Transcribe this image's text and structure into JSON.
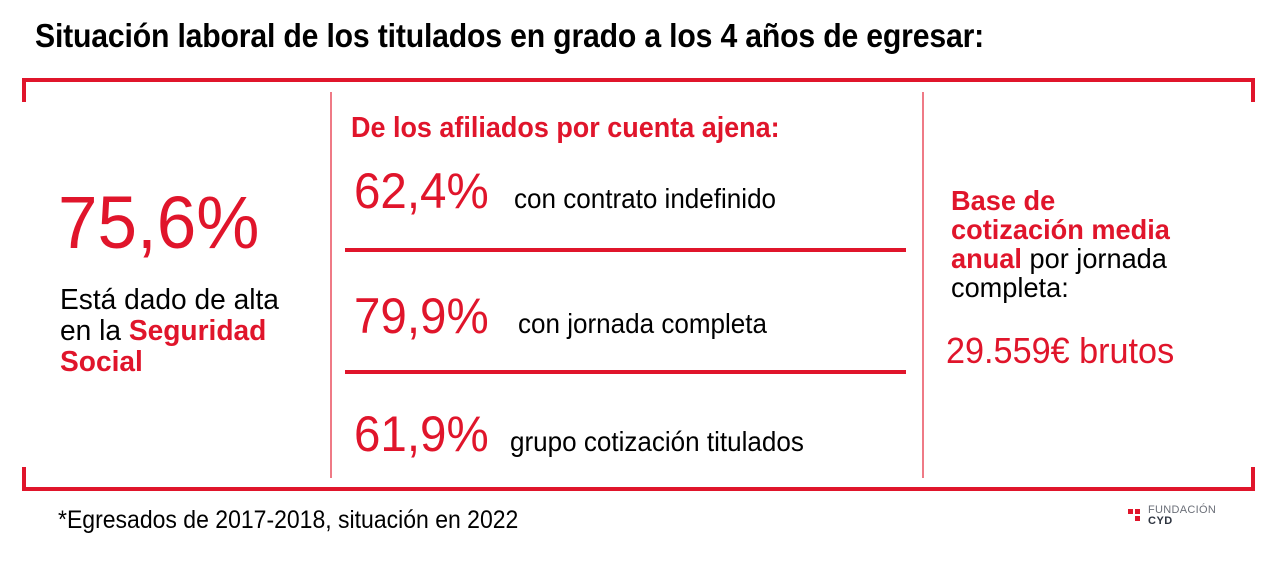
{
  "title": "Situación laboral de los titulados en grado a los 4 años de egresar:",
  "colors": {
    "accent": "#e0152b",
    "text": "#000000"
  },
  "left_panel": {
    "value": "75,6%",
    "desc_line1": "Está dado de alta",
    "desc_line2_prefix": "en la ",
    "desc_highlight_1": "Seguridad",
    "desc_highlight_2": "Social"
  },
  "middle_panel": {
    "heading": "De los afiliados por cuenta ajena:",
    "stats": [
      {
        "value": "62,4%",
        "label": "con contrato indefinido"
      },
      {
        "value": "79,9%",
        "label": "con jornada completa"
      },
      {
        "value": "61,9%",
        "label": "grupo cotización titulados"
      }
    ]
  },
  "right_panel": {
    "line1": "Base de",
    "line2": "cotización media",
    "line3_highlight": "anual",
    "line3_rest": " por jornada",
    "line4": "completa:",
    "amount": "29.559€ brutos"
  },
  "footer": {
    "note": "*Egresados de 2017-2018, situación en 2022",
    "logo_top": "FUNDACIÓN",
    "logo_bottom": "CYD",
    "logo_icon": "fundacion-cyd-squares-icon"
  }
}
